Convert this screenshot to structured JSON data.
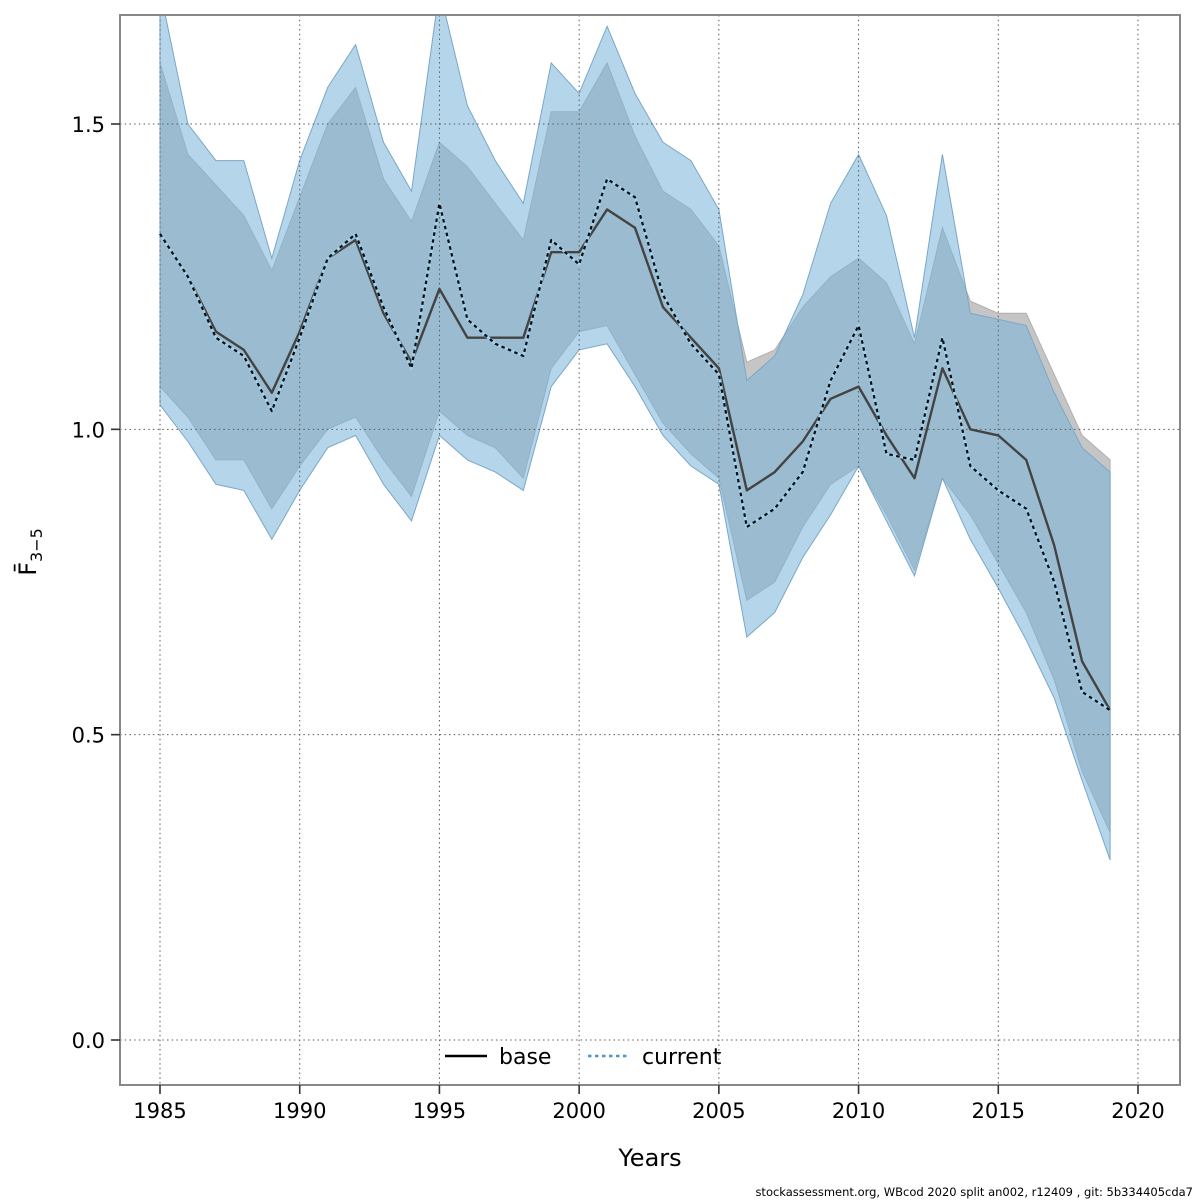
{
  "page": {
    "background": "#ffffff"
  },
  "caption": {
    "text": "stockassessment.org, WBcod 2020 split an002, r12409 , git: 5b334405cda7"
  },
  "chart_data": {
    "type": "line",
    "title": "",
    "xlabel": "Years",
    "ylabel": {
      "main": "F̄",
      "subscript": "3−5"
    },
    "grid": true,
    "xlim": [
      1983.6,
      2021.5
    ],
    "ylim": [
      -0.074,
      1.678
    ],
    "xticks": [
      1985,
      1990,
      1995,
      2000,
      2005,
      2010,
      2015,
      2020
    ],
    "yticks": [
      0.0,
      0.5,
      1.0,
      1.5
    ],
    "ytick_labels": [
      "0.0",
      "0.5",
      "1.0",
      "1.5"
    ],
    "x": [
      1985,
      1986,
      1987,
      1988,
      1989,
      1990,
      1991,
      1992,
      1993,
      1994,
      1995,
      1996,
      1997,
      1998,
      1999,
      2000,
      2001,
      2002,
      2003,
      2004,
      2005,
      2006,
      2007,
      2008,
      2009,
      2010,
      2011,
      2012,
      2013,
      2014,
      2015,
      2016,
      2017,
      2018,
      2019
    ],
    "series": [
      {
        "name": "base",
        "style": "solid",
        "line_color": "#434343",
        "values": [
          1.32,
          1.25,
          1.16,
          1.13,
          1.06,
          1.16,
          1.28,
          1.31,
          1.19,
          1.11,
          1.23,
          1.15,
          1.15,
          1.15,
          1.29,
          1.29,
          1.36,
          1.33,
          1.2,
          1.15,
          1.1,
          0.9,
          0.93,
          0.98,
          1.05,
          1.07,
          0.99,
          0.92,
          1.1,
          1.0,
          0.99,
          0.95,
          0.81,
          0.62,
          0.54
        ],
        "band": {
          "fill": "#c5c5c5",
          "edge": "#b0b0b0",
          "hi": [
            1.6,
            1.45,
            1.4,
            1.35,
            1.26,
            1.38,
            1.5,
            1.56,
            1.41,
            1.34,
            1.47,
            1.43,
            1.37,
            1.31,
            1.52,
            1.52,
            1.6,
            1.48,
            1.39,
            1.36,
            1.3,
            1.11,
            1.13,
            1.2,
            1.25,
            1.28,
            1.24,
            1.14,
            1.33,
            1.21,
            1.19,
            1.19,
            1.09,
            0.99,
            0.95
          ],
          "lo": [
            1.07,
            1.02,
            0.95,
            0.95,
            0.87,
            0.94,
            1.0,
            1.02,
            0.95,
            0.89,
            1.03,
            0.99,
            0.97,
            0.92,
            1.1,
            1.16,
            1.17,
            1.09,
            1.01,
            0.96,
            0.92,
            0.72,
            0.75,
            0.84,
            0.91,
            0.94,
            0.86,
            0.77,
            0.92,
            0.86,
            0.78,
            0.7,
            0.59,
            0.44,
            0.34
          ]
        }
      },
      {
        "name": "current",
        "style": "dotted",
        "line_color": "#0a0a0a",
        "line_underlay_color": "#9fd0ec",
        "values": [
          1.32,
          1.25,
          1.15,
          1.12,
          1.03,
          1.15,
          1.28,
          1.32,
          1.2,
          1.1,
          1.37,
          1.18,
          1.14,
          1.12,
          1.31,
          1.27,
          1.41,
          1.38,
          1.22,
          1.14,
          1.09,
          0.84,
          0.87,
          0.93,
          1.08,
          1.17,
          0.96,
          0.95,
          1.15,
          0.94,
          0.9,
          0.87,
          0.75,
          0.57,
          0.54
        ],
        "band": {
          "fill": "#79b4d9",
          "fill_opacity": 0.55,
          "edge": "#7ba6c8",
          "hi": [
            1.72,
            1.5,
            1.44,
            1.44,
            1.28,
            1.44,
            1.56,
            1.63,
            1.47,
            1.39,
            1.72,
            1.53,
            1.44,
            1.37,
            1.6,
            1.55,
            1.66,
            1.55,
            1.47,
            1.44,
            1.36,
            1.08,
            1.12,
            1.22,
            1.37,
            1.45,
            1.35,
            1.15,
            1.45,
            1.19,
            1.18,
            1.17,
            1.06,
            0.97,
            0.93
          ],
          "lo": [
            1.04,
            0.98,
            0.91,
            0.9,
            0.82,
            0.9,
            0.97,
            0.99,
            0.91,
            0.85,
            0.99,
            0.95,
            0.93,
            0.9,
            1.07,
            1.13,
            1.14,
            1.07,
            0.99,
            0.94,
            0.91,
            0.66,
            0.7,
            0.79,
            0.86,
            0.94,
            0.85,
            0.76,
            0.92,
            0.82,
            0.74,
            0.655,
            0.56,
            0.425,
            0.295
          ]
        }
      }
    ],
    "legend": {
      "position": "bottom-center",
      "items": [
        {
          "label": "base",
          "sample": "solid-black",
          "color": "#000000"
        },
        {
          "label": "current",
          "sample": "dotted-blue",
          "color": "#4f94c4"
        }
      ]
    },
    "colors": {
      "grid": "#5a5a5a",
      "axis_box": "#888888",
      "tick": "#333333",
      "background": "#ffffff"
    }
  }
}
